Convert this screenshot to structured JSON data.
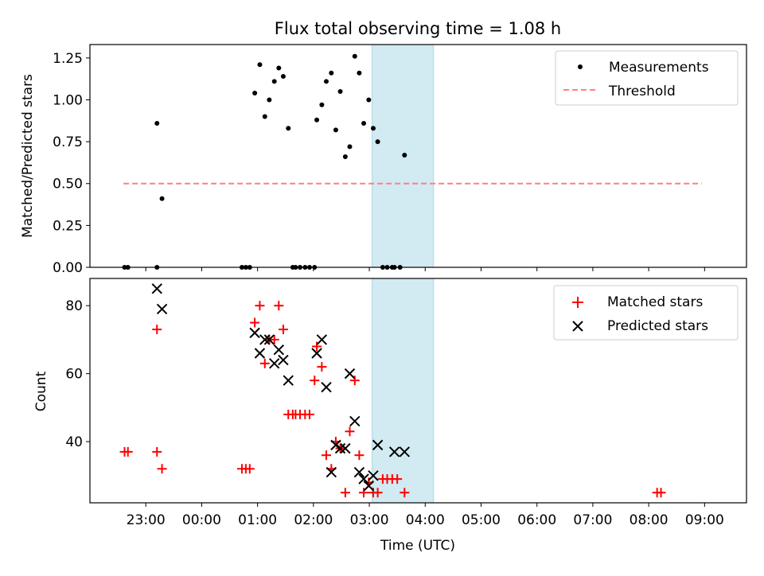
{
  "title": "Flux total observing time = 1.08 h",
  "colors": {
    "measure": "#000000",
    "threshold": "#ff7f7f",
    "matched": "#ff0000",
    "predicted": "#000000",
    "shade": "#add8e6"
  },
  "chart_data": [
    {
      "type": "scatter",
      "title": "Flux total observing time = 1.08 h",
      "ylabel": "Matched/Predicted stars",
      "xlabel": "",
      "xlim": [
        -1.0,
        10.75
      ],
      "ylim": [
        0.0,
        1.33
      ],
      "yticks": [
        0.0,
        0.25,
        0.5,
        0.75,
        1.0,
        1.25
      ],
      "ytick_labels": [
        "0.00",
        "0.25",
        "0.50",
        "0.75",
        "1.00",
        "1.25"
      ],
      "shaded_x": [
        4.05,
        5.15
      ],
      "legend": {
        "position": "upper right",
        "entries": [
          "Measurements",
          "Threshold"
        ]
      },
      "threshold": {
        "name": "Threshold",
        "y": 0.5,
        "x": [
          -0.4,
          9.95
        ]
      },
      "series": [
        {
          "name": "Measurements",
          "x": [
            -0.38,
            -0.32,
            0.2,
            0.2,
            0.29,
            1.72,
            1.79,
            1.86,
            1.95,
            2.04,
            2.13,
            2.21,
            2.3,
            2.38,
            2.46,
            2.55,
            2.63,
            2.68,
            2.76,
            2.85,
            2.93,
            3.02,
            3.06,
            3.15,
            3.23,
            3.32,
            3.4,
            3.48,
            3.57,
            3.65,
            3.74,
            3.82,
            3.9,
            3.99,
            4.07,
            4.15,
            4.24,
            4.32,
            4.41,
            4.45,
            4.55,
            4.63
          ],
          "y": [
            0.0,
            0.0,
            0.86,
            0.0,
            0.41,
            0.0,
            0.0,
            0.0,
            1.04,
            1.21,
            0.9,
            1.0,
            1.11,
            1.19,
            1.14,
            0.83,
            0.0,
            0.0,
            0.0,
            0.0,
            0.0,
            0.0,
            0.88,
            0.97,
            1.11,
            1.16,
            0.82,
            1.05,
            0.66,
            0.72,
            1.26,
            1.16,
            0.86,
            1.0,
            0.83,
            0.75,
            0.0,
            0.0,
            0.0,
            0.0,
            0.0,
            0.67
          ]
        }
      ]
    },
    {
      "type": "scatter",
      "title": "",
      "ylabel": "Count",
      "xlabel": "Time (UTC)",
      "xlim": [
        -1.0,
        10.75
      ],
      "ylim": [
        22,
        88
      ],
      "yticks": [
        40,
        60,
        80
      ],
      "ytick_labels": [
        "40",
        "60",
        "80"
      ],
      "xticks": [
        0,
        1,
        2,
        3,
        4,
        5,
        6,
        7,
        8,
        9,
        10
      ],
      "xtick_labels": [
        "23:00",
        "00:00",
        "01:00",
        "02:00",
        "03:00",
        "04:00",
        "05:00",
        "06:00",
        "07:00",
        "08:00",
        "09:00"
      ],
      "shaded_x": [
        4.05,
        5.15
      ],
      "legend": {
        "position": "upper right",
        "entries": [
          "Matched stars",
          "Predicted stars"
        ]
      },
      "series": [
        {
          "name": "Matched stars",
          "marker": "plus",
          "x": [
            -0.38,
            -0.32,
            0.2,
            0.2,
            0.29,
            1.72,
            1.79,
            1.86,
            1.95,
            2.04,
            2.13,
            2.21,
            2.3,
            2.38,
            2.46,
            2.55,
            2.63,
            2.68,
            2.76,
            2.85,
            2.93,
            3.02,
            3.06,
            3.15,
            3.23,
            3.32,
            3.4,
            3.48,
            3.57,
            3.65,
            3.74,
            3.82,
            3.9,
            3.99,
            4.07,
            4.15,
            4.24,
            4.32,
            4.41,
            4.5,
            4.63,
            9.15,
            9.22
          ],
          "y": [
            37,
            37,
            73,
            37,
            32,
            32,
            32,
            32,
            75,
            80,
            63,
            70,
            70,
            80,
            73,
            48,
            48,
            48,
            48,
            48,
            48,
            58,
            68,
            62,
            36,
            32,
            40,
            38,
            25,
            43,
            58,
            36,
            25,
            28,
            25,
            25,
            29,
            29,
            29,
            29,
            25,
            25,
            25
          ]
        },
        {
          "name": "Predicted stars",
          "marker": "x",
          "x": [
            0.2,
            0.29,
            1.95,
            2.04,
            2.13,
            2.21,
            2.3,
            2.38,
            2.46,
            2.55,
            3.06,
            3.15,
            3.23,
            3.32,
            3.4,
            3.48,
            3.57,
            3.65,
            3.74,
            3.82,
            3.9,
            3.99,
            4.07,
            4.15,
            4.45,
            4.63
          ],
          "y": [
            85,
            79,
            72,
            66,
            70,
            70,
            63,
            67,
            64,
            58,
            66,
            70,
            56,
            31,
            39,
            38,
            38,
            60,
            46,
            31,
            29,
            27,
            30,
            39,
            37,
            37
          ]
        }
      ]
    }
  ]
}
